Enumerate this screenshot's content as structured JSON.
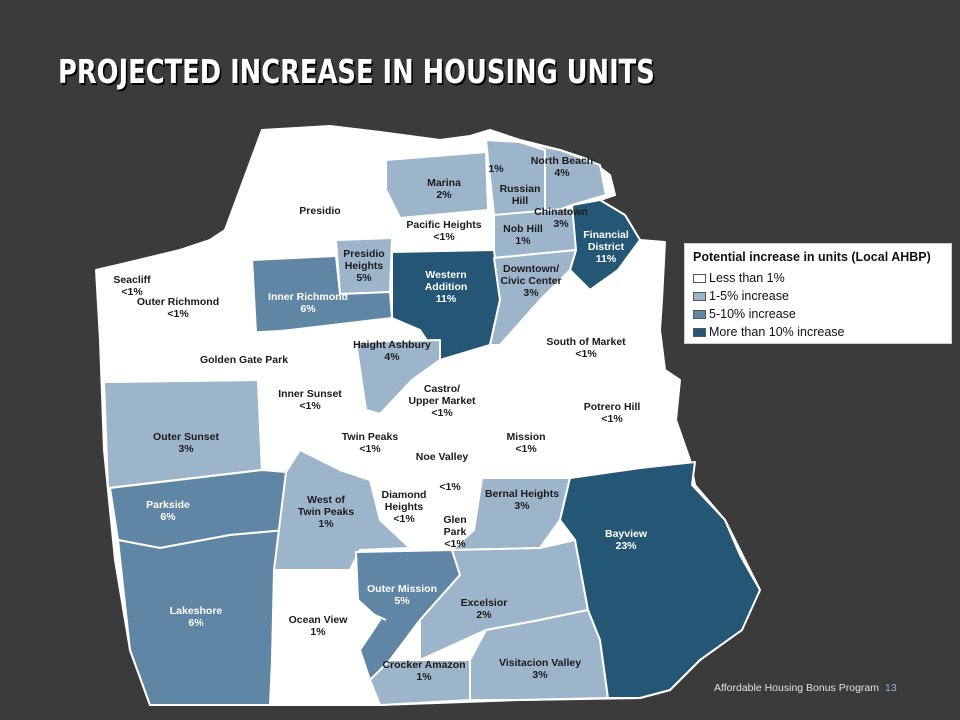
{
  "title": "PROJECTED INCREASE IN HOUSING UNITS",
  "colors": {
    "background": "#3b3b3b",
    "less_than_1": "#ffffff",
    "one_to_5": "#9db5cb",
    "five_to_10": "#5f86a5",
    "more_than_10": "#245676",
    "boundary": "#ffffff"
  },
  "legend": {
    "title": "Potential increase in units (Local AHBP)",
    "items": [
      {
        "label": "Less than 1%",
        "color": "#ffffff"
      },
      {
        "label": "1-5% increase",
        "color": "#9db5cb"
      },
      {
        "label": "5-10% increase",
        "color": "#5f86a5"
      },
      {
        "label": "More than 10% increase",
        "color": "#245676"
      }
    ]
  },
  "neighborhoods": [
    {
      "name": "Presidio",
      "value": "",
      "category": "less_than_1"
    },
    {
      "name": "Marina",
      "value": "2%",
      "category": "one_to_5"
    },
    {
      "name": "",
      "value": "1%",
      "category": "one_to_5"
    },
    {
      "name": "Russian Hill",
      "value": "",
      "category": "one_to_5"
    },
    {
      "name": "North Beach",
      "value": "4%",
      "category": "one_to_5"
    },
    {
      "name": "Chinatown",
      "value": "3%",
      "category": "one_to_5"
    },
    {
      "name": "Nob Hill",
      "value": "1%",
      "category": "one_to_5"
    },
    {
      "name": "Financial District",
      "value": "11%",
      "category": "more_than_10"
    },
    {
      "name": "Pacific Heights",
      "value": "<1%",
      "category": "less_than_1"
    },
    {
      "name": "Presidio Heights",
      "value": "5%",
      "category": "one_to_5"
    },
    {
      "name": "Western Addition",
      "value": "11%",
      "category": "more_than_10"
    },
    {
      "name": "Downtown/ Civic Center",
      "value": "3%",
      "category": "one_to_5"
    },
    {
      "name": "Seacliff",
      "value": "<1%",
      "category": "less_than_1"
    },
    {
      "name": "Outer Richmond",
      "value": "<1%",
      "category": "less_than_1"
    },
    {
      "name": "Inner Richmond",
      "value": "6%",
      "category": "five_to_10"
    },
    {
      "name": "South of Market",
      "value": "<1%",
      "category": "less_than_1"
    },
    {
      "name": "Golden Gate Park",
      "value": "",
      "category": "less_than_1"
    },
    {
      "name": "Haight Ashbury",
      "value": "4%",
      "category": "one_to_5"
    },
    {
      "name": "Inner Sunset",
      "value": "<1%",
      "category": "less_than_1"
    },
    {
      "name": "Castro/ Upper Market",
      "value": "<1%",
      "category": "less_than_1"
    },
    {
      "name": "Potrero Hill",
      "value": "<1%",
      "category": "less_than_1"
    },
    {
      "name": "Outer Sunset",
      "value": "3%",
      "category": "one_to_5"
    },
    {
      "name": "Twin Peaks",
      "value": "<1%",
      "category": "less_than_1"
    },
    {
      "name": "Noe Valley",
      "value": "",
      "category": "less_than_1"
    },
    {
      "name": "Mission",
      "value": "<1%",
      "category": "less_than_1"
    },
    {
      "name": "Diamond Heights",
      "value": "<1%",
      "category": "less_than_1"
    },
    {
      "name": "Glen Park",
      "value": "<1%",
      "category": "less_than_1"
    },
    {
      "name": "",
      "value": "<1%",
      "category": "less_than_1"
    },
    {
      "name": "Bernal Heights",
      "value": "3%",
      "category": "one_to_5"
    },
    {
      "name": "Parkside",
      "value": "6%",
      "category": "five_to_10"
    },
    {
      "name": "West of Twin Peaks",
      "value": "1%",
      "category": "one_to_5"
    },
    {
      "name": "Bayview",
      "value": "23%",
      "category": "more_than_10"
    },
    {
      "name": "Lakeshore",
      "value": "6%",
      "category": "five_to_10"
    },
    {
      "name": "Outer Mission",
      "value": "5%",
      "category": "five_to_10"
    },
    {
      "name": "Excelsior",
      "value": "2%",
      "category": "one_to_5"
    },
    {
      "name": "Ocean View",
      "value": "1%",
      "category": "less_than_1"
    },
    {
      "name": "Crocker Amazon",
      "value": "1%",
      "category": "one_to_5"
    },
    {
      "name": "Visitacion Valley",
      "value": "3%",
      "category": "one_to_5"
    }
  ],
  "footer": {
    "text": "Affordable Housing Bonus Program",
    "page": "13"
  }
}
